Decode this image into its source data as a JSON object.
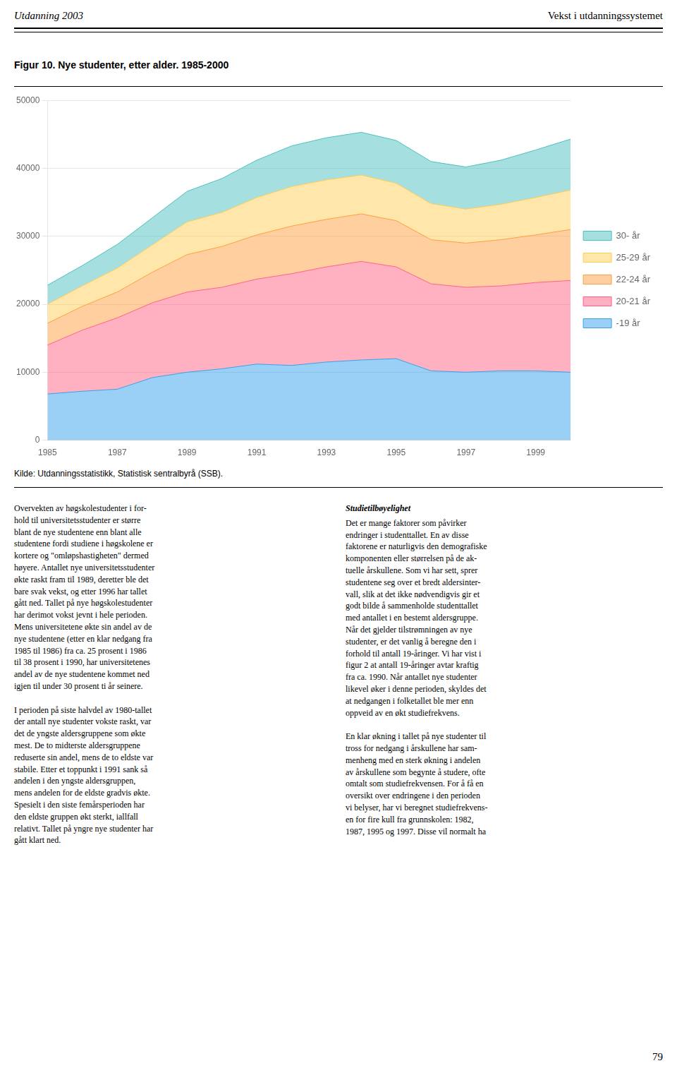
{
  "chart_data": {
    "type": "area",
    "title": "Figur 10. Nye studenter, etter alder. 1985-2000",
    "x": [
      1985,
      1986,
      1987,
      1988,
      1989,
      1990,
      1991,
      1992,
      1993,
      1994,
      1995,
      1996,
      1997,
      1998,
      1999,
      2000
    ],
    "series": [
      {
        "name": "-19 år",
        "values": [
          6800,
          7200,
          7500,
          9200,
          10000,
          10500,
          11200,
          11000,
          11500,
          11800,
          12000,
          10200,
          10000,
          10200,
          10200,
          10000
        ]
      },
      {
        "name": "20-21 år",
        "values": [
          7200,
          9000,
          10500,
          11000,
          11800,
          12000,
          12500,
          13500,
          14000,
          14500,
          13500,
          12800,
          12500,
          12500,
          13000,
          13500
        ]
      },
      {
        "name": "22-24 år",
        "values": [
          3200,
          3500,
          3800,
          4500,
          5500,
          6000,
          6500,
          7000,
          7000,
          7000,
          6800,
          6500,
          6500,
          6800,
          7000,
          7500
        ]
      },
      {
        "name": "25-29 år",
        "values": [
          2800,
          3000,
          3500,
          4000,
          4800,
          5000,
          5500,
          5800,
          5800,
          5700,
          5500,
          5300,
          5000,
          5200,
          5500,
          5800
        ]
      },
      {
        "name": "30- år",
        "values": [
          2800,
          3000,
          3500,
          4000,
          4500,
          5000,
          5500,
          6000,
          6200,
          6300,
          6300,
          6200,
          6200,
          6500,
          7000,
          7500
        ]
      }
    ],
    "xlim": [
      1985,
      2000
    ],
    "xticks": [
      1985,
      1987,
      1989,
      1991,
      1993,
      1995,
      1997,
      1999
    ],
    "ylim": [
      0,
      50000
    ],
    "yticks": [
      0,
      10000,
      20000,
      30000,
      40000,
      50000
    ],
    "stacked": true,
    "grid": true,
    "legend": "right",
    "annotations": [
      "Utdanning 2003",
      "Vekst i utdanningssystemet",
      "Kilde: Utdanningsstatistikk, Statistisk sentralbyrå (SSB).",
      "Overvekten av høgskolestudenter i for-\nhold til universitetsstudenter er større\nblant de nye studentene enn blant alle\nstudentene fordi studiene i høgskolene er\nkortere og \"omløpshastigheten\" dermed\nhøyere. Antallet nye universitetsstudenter\nøkte raskt fram til 1989, deretter ble det\nbare svak vekst, og etter 1996 har tallet\ngått ned. Tallet på nye høgskolestudenter\nhar derimot vokst jevnt i hele perioden.\nMens universitetene økte sin andel av de\nnye studentene (etter en klar nedgang fra\n1985 til 1986) fra ca. 25 prosent i 1986\ntil 38 prosent i 1990, har universitetenes\nandel av de nye studentene kommet ned\nigjen til under 30 prosent ti år seinere.\n\nI perioden på siste halvdel av 1980-tallet\nder antall nye studenter vokste raskt, var\ndet de yngste aldersgruppene som økte\nmest. De to midterste aldersgruppene\nreduserte sin andel, mens de to eldste var\nstabile. Etter et toppunkt i 1991 sank så\nandelen i den yngste aldersgruppen,\nmens andelen for de eldste gradvis økte.\nSpesielt i den siste femårsperioden har\nden eldste gruppen økt sterkt, iallfall\nrelativt. Tallet på yngre nye studenter har\ngått klart ned.",
      "Studietilbøyelighet",
      "Det er mange faktorer som påvirker\nendringer i studenttallet. En av disse\nfaktorene er naturligvis den demografiske\nkomponenten eller størrelsen på de ak-\ntuelle årskullene. Som vi har sett, sprer\nstudentene seg over et bredt aldersinter-\nvall, slik at det ikke nødvendigvis gir et\ngodt bilde å sammenholde studenttallet\nmed antallet i en bestemt aldersgruppe.\nNår det gjelder tilstrømningen av nye\nstudenter, er det vanlig å beregne den i\nforhold til antall 19-åringer. Vi har vist i\nfigur 2 at antall 19-åringer avtar kraftig\nfra ca. 1990. Når antallet nye studenter\nlikevel øker i denne perioden, skyldes det\nat nedgangen i folketallet ble mer enn\noppveid av en økt studiefrekvens.\n\nEn klar økning i tallet på nye studenter til\ntross for nedgang i årskullene har sam-\nmenheng med en sterk økning i andelen\nav årskullene som begynte å studere, ofte\nomtalt som studiefrekvensen. For å få en\noversikt over endringene i den perioden\nvi belyser, har vi beregnet studiefrekvens-\nen for fire kull fra grunnskolen: 1982,\n1987, 1995 og 1997. Disse vil normalt ha",
      "79"
    ]
  }
}
